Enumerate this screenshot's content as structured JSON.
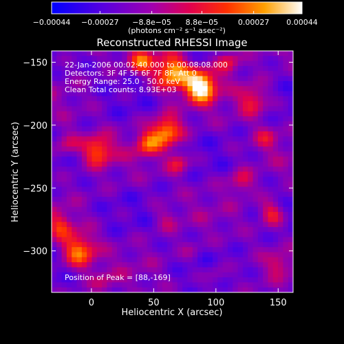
{
  "chart_data": {
    "type": "heatmap",
    "title": "Reconstructed RHESSI Image",
    "xlabel": "Heliocentric X (arcsec)",
    "ylabel": "Heliocentric Y (arcsec)",
    "xlim": [
      -32,
      162
    ],
    "ylim": [
      -333,
      -141
    ],
    "xticks": [
      0,
      50,
      100,
      150
    ],
    "xtick_labels": [
      "0",
      "50",
      "100",
      "150"
    ],
    "yticks": [
      -150,
      -200,
      -250,
      -300
    ],
    "ytick_labels": [
      "−150",
      "−200",
      "−250",
      "−300"
    ],
    "colorbar": {
      "range": [
        -0.00044,
        0.00044
      ],
      "ticks": [
        -0.00044,
        -0.00027,
        -8.8e-05,
        8.8e-05,
        0.00027,
        0.00044
      ],
      "tick_labels": [
        "−0.00044",
        "−0.00027",
        "−8.8e−05",
        "8.8e−05",
        "0.00027",
        "0.00044"
      ],
      "unit": "(photons cm⁻² s⁻¹ asec⁻²)",
      "colors": [
        "#0000ff",
        "#6a00d8",
        "#b000a0",
        "#ff0000",
        "#ff7a00",
        "#ffd000",
        "#ffffff"
      ]
    },
    "annotations": [
      "22-Jan-2006 00:02:40.000 to 00:08:08.000",
      "Detectors: 3F 4F 5F 6F 7F 8F, Att 0",
      "Energy Range: 25.0 - 50.0 keV",
      "Clean     Total counts: 8.93E+03"
    ],
    "peak_label": "Position of Peak = [88,-169]",
    "peak": [
      88,
      -169
    ],
    "blobs": [
      {
        "x": 88,
        "y": -169,
        "v": 1.0,
        "r": 12
      },
      {
        "x": 65,
        "y": -158,
        "v": 0.85,
        "r": 14
      },
      {
        "x": 40,
        "y": -150,
        "v": 0.65,
        "r": 10
      },
      {
        "x": 110,
        "y": -150,
        "v": 0.55,
        "r": 10
      },
      {
        "x": 60,
        "y": -205,
        "v": 0.8,
        "r": 12
      },
      {
        "x": 45,
        "y": -215,
        "v": 0.6,
        "r": 10
      },
      {
        "x": 70,
        "y": -230,
        "v": 0.55,
        "r": 9
      },
      {
        "x": 5,
        "y": -220,
        "v": 0.7,
        "r": 12
      },
      {
        "x": -20,
        "y": -215,
        "v": 0.5,
        "r": 10
      },
      {
        "x": 130,
        "y": -180,
        "v": 0.6,
        "r": 12
      },
      {
        "x": 140,
        "y": -210,
        "v": 0.45,
        "r": 10
      },
      {
        "x": 120,
        "y": -245,
        "v": 0.5,
        "r": 10
      },
      {
        "x": 145,
        "y": -270,
        "v": 0.6,
        "r": 10
      },
      {
        "x": 150,
        "y": -310,
        "v": 0.45,
        "r": 9
      },
      {
        "x": 100,
        "y": -320,
        "v": 0.4,
        "r": 9
      },
      {
        "x": -10,
        "y": -300,
        "v": 0.75,
        "r": 14
      },
      {
        "x": -25,
        "y": -280,
        "v": 0.55,
        "r": 10
      },
      {
        "x": 10,
        "y": -325,
        "v": 0.4,
        "r": 10
      },
      {
        "x": 60,
        "y": -275,
        "v": 0.4,
        "r": 10
      },
      {
        "x": 80,
        "y": -300,
        "v": 0.35,
        "r": 8
      }
    ]
  }
}
